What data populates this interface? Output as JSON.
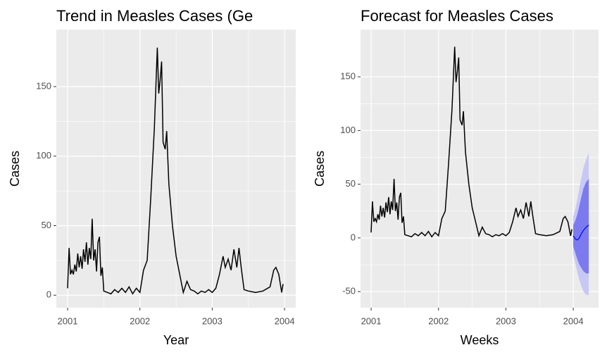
{
  "chart_data": [
    {
      "type": "line",
      "title": "Trend in Measles Cases (Ge",
      "x_label": "Year",
      "y_label": "Cases",
      "x": [
        2001.0,
        2001.02,
        2001.04,
        2001.06,
        2001.08,
        2001.1,
        2001.12,
        2001.14,
        2001.16,
        2001.18,
        2001.2,
        2001.22,
        2001.24,
        2001.26,
        2001.28,
        2001.3,
        2001.32,
        2001.34,
        2001.36,
        2001.38,
        2001.4,
        2001.42,
        2001.44,
        2001.46,
        2001.48,
        2001.5,
        2001.55,
        2001.6,
        2001.65,
        2001.7,
        2001.75,
        2001.8,
        2001.85,
        2001.9,
        2001.95,
        2002.0,
        2002.05,
        2002.1,
        2002.15,
        2002.2,
        2002.24,
        2002.26,
        2002.28,
        2002.3,
        2002.32,
        2002.35,
        2002.37,
        2002.4,
        2002.45,
        2002.5,
        2002.55,
        2002.6,
        2002.65,
        2002.7,
        2002.75,
        2002.8,
        2002.85,
        2002.9,
        2002.95,
        2003.0,
        2003.05,
        2003.1,
        2003.15,
        2003.18,
        2003.22,
        2003.26,
        2003.3,
        2003.34,
        2003.37,
        2003.4,
        2003.44,
        2003.5,
        2003.6,
        2003.7,
        2003.8,
        2003.85,
        2003.88,
        2003.92,
        2003.96,
        2003.98
      ],
      "values": [
        5,
        34,
        15,
        18,
        15,
        22,
        17,
        30,
        20,
        28,
        19,
        33,
        24,
        38,
        22,
        34,
        26,
        55,
        25,
        33,
        17,
        38,
        42,
        14,
        20,
        3,
        2,
        1,
        4,
        2,
        5,
        2,
        6,
        1,
        5,
        2,
        18,
        25,
        70,
        120,
        178,
        145,
        155,
        168,
        110,
        105,
        118,
        80,
        50,
        28,
        15,
        2,
        10,
        4,
        3,
        1,
        3,
        2,
        4,
        2,
        5,
        15,
        28,
        20,
        26,
        18,
        33,
        20,
        34,
        20,
        4,
        3,
        2,
        3,
        6,
        18,
        20,
        15,
        2,
        8
      ],
      "color": "#000000",
      "xlim": [
        2000.844,
        2004.155
      ],
      "xticks": [
        2001,
        2002,
        2003,
        2004
      ],
      "ylim": [
        -9,
        191
      ],
      "yticks": [
        0,
        50,
        100,
        150
      ],
      "grid": true
    },
    {
      "type": "forecast",
      "title": "Forecast for Measles Cases",
      "x_label": "Weeks",
      "y_label": "Cases",
      "x": [
        2001.0,
        2001.02,
        2001.04,
        2001.06,
        2001.08,
        2001.1,
        2001.12,
        2001.14,
        2001.16,
        2001.18,
        2001.2,
        2001.22,
        2001.24,
        2001.26,
        2001.28,
        2001.3,
        2001.32,
        2001.34,
        2001.36,
        2001.38,
        2001.4,
        2001.42,
        2001.44,
        2001.46,
        2001.48,
        2001.5,
        2001.55,
        2001.6,
        2001.65,
        2001.7,
        2001.75,
        2001.8,
        2001.85,
        2001.9,
        2001.95,
        2002.0,
        2002.05,
        2002.1,
        2002.15,
        2002.2,
        2002.24,
        2002.26,
        2002.28,
        2002.3,
        2002.32,
        2002.35,
        2002.37,
        2002.4,
        2002.45,
        2002.5,
        2002.55,
        2002.6,
        2002.65,
        2002.7,
        2002.75,
        2002.8,
        2002.85,
        2002.9,
        2002.95,
        2003.0,
        2003.05,
        2003.1,
        2003.15,
        2003.18,
        2003.22,
        2003.26,
        2003.3,
        2003.34,
        2003.37,
        2003.4,
        2003.44,
        2003.5,
        2003.6,
        2003.7,
        2003.8,
        2003.85,
        2003.88,
        2003.92,
        2003.96,
        2003.98
      ],
      "values": [
        5,
        34,
        15,
        18,
        15,
        22,
        17,
        30,
        20,
        28,
        19,
        33,
        24,
        38,
        22,
        34,
        26,
        55,
        25,
        33,
        17,
        38,
        42,
        14,
        20,
        3,
        2,
        1,
        4,
        2,
        5,
        2,
        6,
        1,
        5,
        2,
        18,
        25,
        70,
        120,
        178,
        145,
        155,
        168,
        110,
        105,
        118,
        80,
        50,
        28,
        15,
        2,
        10,
        4,
        3,
        1,
        3,
        2,
        4,
        2,
        5,
        15,
        28,
        20,
        26,
        18,
        33,
        20,
        34,
        20,
        4,
        3,
        2,
        3,
        6,
        18,
        20,
        15,
        2,
        8
      ],
      "color": "#000000",
      "forecast": {
        "x": [
          2004.0,
          2004.03,
          2004.06,
          2004.09,
          2004.12,
          2004.15,
          2004.19,
          2004.23
        ],
        "values": [
          2,
          -1,
          -2,
          0,
          4,
          7,
          10,
          12
        ],
        "lower_80": [
          -8,
          -14,
          -20,
          -25,
          -28,
          -31,
          -33,
          -33
        ],
        "upper_80": [
          12,
          16,
          22,
          30,
          38,
          46,
          52,
          55
        ],
        "lower_95": [
          -15,
          -24,
          -32,
          -39,
          -45,
          -50,
          -53,
          -53
        ],
        "upper_95": [
          20,
          27,
          36,
          46,
          56,
          65,
          73,
          79
        ],
        "color": "#0000ff",
        "color_80": "#7b7bef",
        "color_95": "#c8c8f4"
      },
      "xlim": [
        2000.843,
        2004.375
      ],
      "xticks": [
        2001,
        2002,
        2003,
        2004
      ],
      "ylim": [
        -65,
        194
      ],
      "yticks": [
        -50,
        0,
        50,
        100,
        150
      ],
      "grid": true
    }
  ]
}
